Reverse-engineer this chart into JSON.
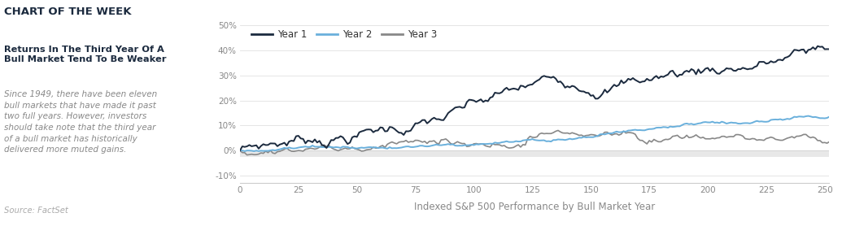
{
  "title_main": "CHART OF THE WEEK",
  "title_sub": "Returns In The Third Year Of A\nBull Market Tend To Be Weaker",
  "body_text": "Since 1949, there have been eleven\nbull markets that have made it past\ntwo full years. However, investors\nshould take note that the third year\nof a bull market has historically\ndelivered more muted gains.",
  "source_text": "Source: FactSet",
  "xlabel": "Indexed S&P 500 Performance by Bull Market Year",
  "ylim": [
    -0.13,
    0.52
  ],
  "xlim": [
    0,
    252
  ],
  "yticks": [
    -0.1,
    0.0,
    0.1,
    0.2,
    0.3,
    0.4,
    0.5
  ],
  "ytick_labels": [
    "-10%",
    "0%",
    "10%",
    "20%",
    "30%",
    "40%",
    "50%"
  ],
  "xticks": [
    0,
    25,
    50,
    75,
    100,
    125,
    150,
    175,
    200,
    225,
    250
  ],
  "color_year1": "#1b2a3e",
  "color_year2": "#6ab0dc",
  "color_year3": "#888888",
  "color_zero_band": "#e8e8e8",
  "legend_labels": [
    "Year 1",
    "Year 2",
    "Year 3"
  ],
  "n_points": 252,
  "background_color": "#ffffff",
  "title_color": "#1b2a3e",
  "body_color": "#888888",
  "subtitle_color": "#1b2a3e"
}
